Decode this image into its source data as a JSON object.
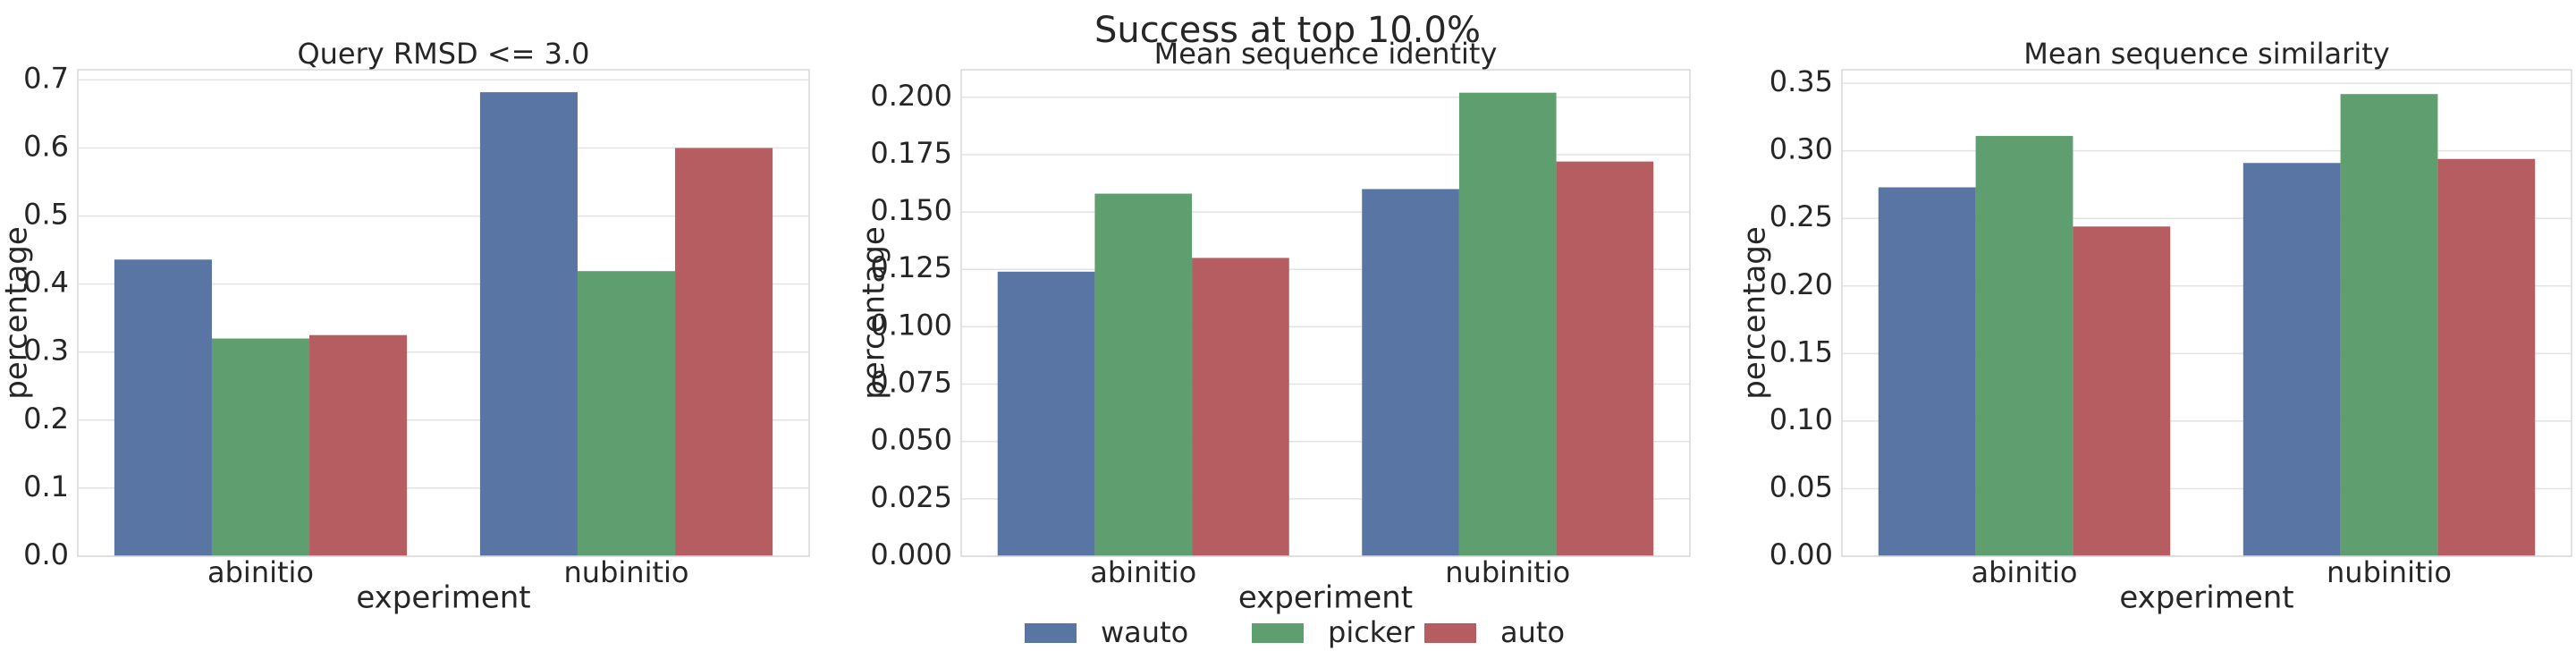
{
  "figure": {
    "suptitle": "Success at top 10.0%"
  },
  "legend": {
    "placement": "bottom-center",
    "entries": [
      {
        "name": "wauto",
        "color": "#5875a4"
      },
      {
        "name": "picker",
        "color": "#5f9e6e"
      },
      {
        "name": "auto",
        "color": "#b55d60"
      }
    ]
  },
  "chart_data": [
    {
      "type": "bar",
      "title": "Query RMSD <= 3.0",
      "xlabel": "experiment",
      "ylabel": "percentage",
      "categories": [
        "abinitio",
        "nubinitio"
      ],
      "ylim": [
        0,
        0.715
      ],
      "yticks": [
        0.0,
        0.1,
        0.2,
        0.3,
        0.4,
        0.5,
        0.6,
        0.7
      ],
      "ytick_labels": [
        "0.0",
        "0.1",
        "0.2",
        "0.3",
        "0.4",
        "0.5",
        "0.6",
        "0.7"
      ],
      "grid": true,
      "series": [
        {
          "name": "wauto",
          "values": [
            0.436,
            0.682
          ]
        },
        {
          "name": "picker",
          "values": [
            0.32,
            0.419
          ]
        },
        {
          "name": "auto",
          "values": [
            0.325,
            0.6
          ]
        }
      ]
    },
    {
      "type": "bar",
      "title": "Mean sequence identity",
      "xlabel": "experiment",
      "ylabel": "percentage",
      "categories": [
        "abinitio",
        "nubinitio"
      ],
      "ylim": [
        0,
        0.212
      ],
      "yticks": [
        0.0,
        0.025,
        0.05,
        0.075,
        0.1,
        0.125,
        0.15,
        0.175,
        0.2
      ],
      "ytick_labels": [
        "0.000",
        "0.025",
        "0.050",
        "0.075",
        "0.100",
        "0.125",
        "0.150",
        "0.175",
        "0.200"
      ],
      "grid": true,
      "series": [
        {
          "name": "wauto",
          "values": [
            0.124,
            0.16
          ]
        },
        {
          "name": "picker",
          "values": [
            0.158,
            0.202
          ]
        },
        {
          "name": "auto",
          "values": [
            0.13,
            0.172
          ]
        }
      ]
    },
    {
      "type": "bar",
      "title": "Mean sequence similarity",
      "xlabel": "experiment",
      "ylabel": "percentage",
      "categories": [
        "abinitio",
        "nubinitio"
      ],
      "ylim": [
        0,
        0.36
      ],
      "yticks": [
        0.0,
        0.05,
        0.1,
        0.15,
        0.2,
        0.25,
        0.3,
        0.35
      ],
      "ytick_labels": [
        "0.00",
        "0.05",
        "0.10",
        "0.15",
        "0.20",
        "0.25",
        "0.30",
        "0.35"
      ],
      "grid": true,
      "series": [
        {
          "name": "wauto",
          "values": [
            0.273,
            0.291
          ]
        },
        {
          "name": "picker",
          "values": [
            0.311,
            0.342
          ]
        },
        {
          "name": "auto",
          "values": [
            0.244,
            0.294
          ]
        }
      ]
    }
  ]
}
